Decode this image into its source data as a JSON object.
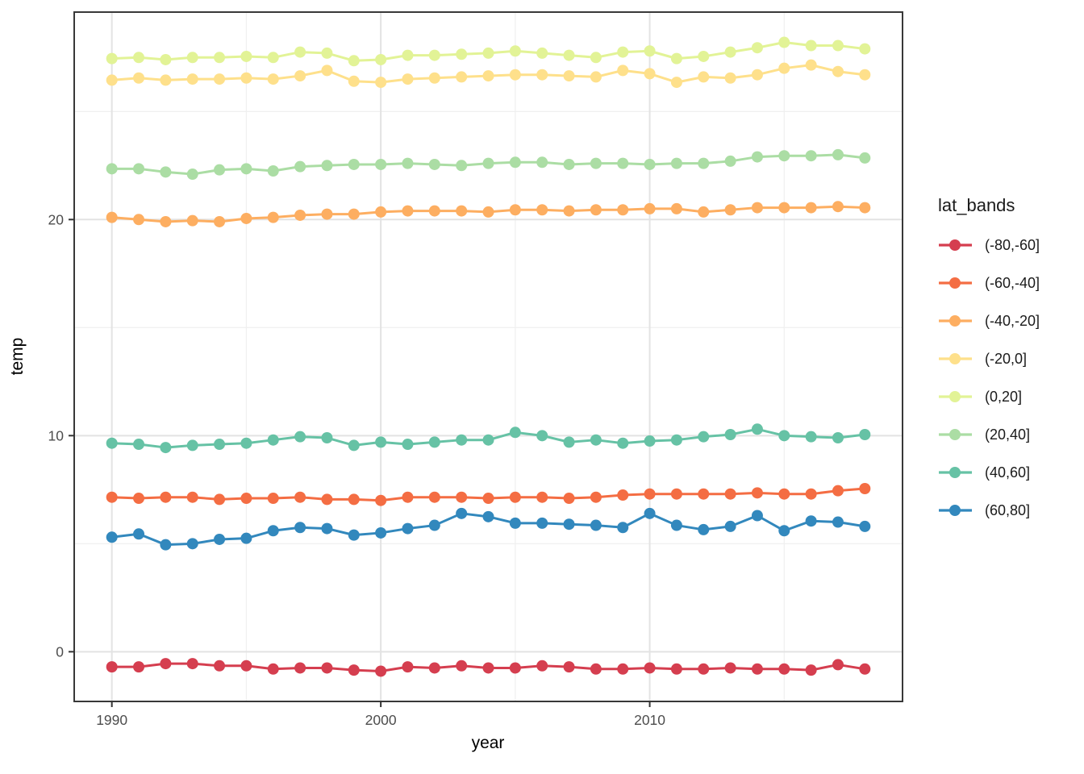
{
  "chart_data": {
    "type": "line",
    "title": "",
    "xlabel": "year",
    "ylabel": "temp",
    "legend_title": "lat_bands",
    "legend_position": "right",
    "grid": true,
    "xlim": [
      1988.6,
      2019.4
    ],
    "ylim": [
      -2.3,
      29.6
    ],
    "xticks": [
      1990,
      2000,
      2010
    ],
    "xticks_minor": [
      1995,
      2005,
      2015
    ],
    "yticks": [
      0,
      10,
      20
    ],
    "yticks_minor": [
      5,
      15,
      25
    ],
    "x": [
      1990,
      1991,
      1992,
      1993,
      1994,
      1995,
      1996,
      1997,
      1998,
      1999,
      2000,
      2001,
      2002,
      2003,
      2004,
      2005,
      2006,
      2007,
      2008,
      2009,
      2010,
      2011,
      2012,
      2013,
      2014,
      2015,
      2016,
      2017,
      2018
    ],
    "series": [
      {
        "name": "(-80,-60]",
        "color": "#d53e4f",
        "values": [
          -0.7,
          -0.7,
          -0.55,
          -0.55,
          -0.65,
          -0.65,
          -0.8,
          -0.75,
          -0.75,
          -0.85,
          -0.9,
          -0.7,
          -0.75,
          -0.65,
          -0.75,
          -0.75,
          -0.65,
          -0.7,
          -0.8,
          -0.8,
          -0.75,
          -0.8,
          -0.8,
          -0.75,
          -0.8,
          -0.8,
          -0.85,
          -0.6,
          -0.8
        ]
      },
      {
        "name": "(-60,-40]",
        "color": "#f46d43",
        "values": [
          7.15,
          7.1,
          7.15,
          7.15,
          7.05,
          7.1,
          7.1,
          7.15,
          7.05,
          7.05,
          7.0,
          7.15,
          7.15,
          7.15,
          7.1,
          7.15,
          7.15,
          7.1,
          7.15,
          7.25,
          7.3,
          7.3,
          7.3,
          7.3,
          7.35,
          7.3,
          7.3,
          7.45,
          7.55
        ]
      },
      {
        "name": "(-40,-20]",
        "color": "#fdae61",
        "values": [
          20.1,
          20.0,
          19.9,
          19.95,
          19.9,
          20.05,
          20.1,
          20.2,
          20.25,
          20.25,
          20.35,
          20.4,
          20.4,
          20.4,
          20.35,
          20.45,
          20.45,
          20.4,
          20.45,
          20.45,
          20.5,
          20.5,
          20.35,
          20.45,
          20.55,
          20.55,
          20.55,
          20.6,
          20.55
        ]
      },
      {
        "name": "(-20,0]",
        "color": "#fee08b",
        "values": [
          26.45,
          26.55,
          26.45,
          26.5,
          26.5,
          26.55,
          26.5,
          26.65,
          26.9,
          26.4,
          26.35,
          26.5,
          26.55,
          26.6,
          26.65,
          26.7,
          26.7,
          26.65,
          26.6,
          26.9,
          26.75,
          26.35,
          26.6,
          26.55,
          26.7,
          27.0,
          27.15,
          26.85,
          26.7
        ]
      },
      {
        "name": "(0,20]",
        "color": "#e2f396",
        "values": [
          27.45,
          27.5,
          27.4,
          27.5,
          27.5,
          27.55,
          27.5,
          27.75,
          27.7,
          27.35,
          27.4,
          27.6,
          27.6,
          27.65,
          27.7,
          27.8,
          27.7,
          27.6,
          27.5,
          27.75,
          27.8,
          27.45,
          27.55,
          27.75,
          27.95,
          28.2,
          28.05,
          28.05,
          27.9
        ]
      },
      {
        "name": "(20,40]",
        "color": "#abdda4",
        "values": [
          22.35,
          22.35,
          22.2,
          22.1,
          22.3,
          22.35,
          22.25,
          22.45,
          22.5,
          22.55,
          22.55,
          22.6,
          22.55,
          22.5,
          22.6,
          22.65,
          22.65,
          22.55,
          22.6,
          22.6,
          22.55,
          22.6,
          22.6,
          22.7,
          22.9,
          22.95,
          22.95,
          23.0,
          22.85
        ]
      },
      {
        "name": "(40,60]",
        "color": "#66c2a5",
        "values": [
          9.65,
          9.6,
          9.45,
          9.55,
          9.6,
          9.65,
          9.8,
          9.95,
          9.9,
          9.55,
          9.7,
          9.6,
          9.7,
          9.8,
          9.8,
          10.15,
          10.0,
          9.7,
          9.8,
          9.65,
          9.75,
          9.8,
          9.95,
          10.05,
          10.3,
          10.0,
          9.95,
          9.9,
          10.05
        ]
      },
      {
        "name": "(60,80]",
        "color": "#3288bd",
        "values": [
          5.3,
          5.45,
          4.95,
          5.0,
          5.2,
          5.25,
          5.6,
          5.75,
          5.7,
          5.4,
          5.5,
          5.7,
          5.85,
          6.4,
          6.25,
          5.95,
          5.95,
          5.9,
          5.85,
          5.75,
          6.4,
          5.85,
          5.65,
          5.8,
          6.3,
          5.6,
          6.05,
          6.0,
          5.8
        ]
      }
    ]
  },
  "style": {
    "panel_border_color": "#383838",
    "grid_major_color": "#e3e3e3",
    "grid_minor_color": "#f0f0f0",
    "tick_color": "#333333",
    "tick_label_color": "#4d4d4d",
    "axis_title_color": "#000000",
    "legend_text_color": "#1a1a1a",
    "background": "#ffffff"
  }
}
